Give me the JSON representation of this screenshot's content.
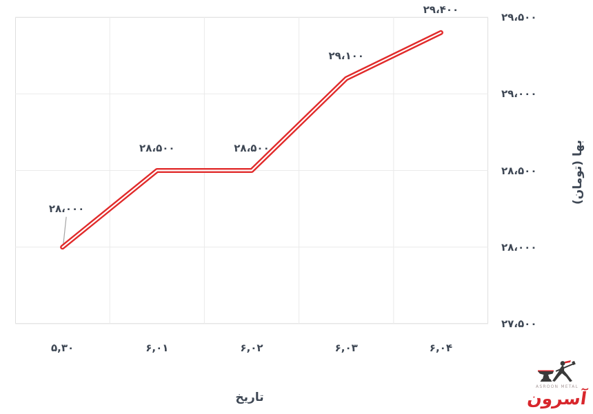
{
  "chart_data": {
    "type": "line",
    "title": "",
    "categories": [
      "۵,۳۰",
      "۶,۰۱",
      "۶,۰۲",
      "۶,۰۳",
      "۶,۰۴"
    ],
    "values": [
      28000,
      28500,
      28500,
      29100,
      29400
    ],
    "point_labels": [
      "۲۸،۰۰۰",
      "۲۸،۵۰۰",
      "۲۸،۵۰۰",
      "۲۹،۱۰۰",
      "۲۹،۴۰۰"
    ],
    "xlabel": "تاریخ",
    "ylabel": "بها (تومان)",
    "ylim": [
      27500,
      29500
    ],
    "y_tick_values": [
      29500,
      29000,
      28500,
      28000,
      27500
    ],
    "y_tick_labels": [
      "۲۹،۵۰۰",
      "۲۹،۰۰۰",
      "۲۸،۵۰۰",
      "۲۸،۰۰۰",
      "۲۷،۵۰۰"
    ],
    "grid": true,
    "legend": "none",
    "line_style": "red line with white center stroke",
    "first_label_has_leader_line": true
  },
  "colors": {
    "line_red": "#e12b2b",
    "line_core": "#ffffff",
    "text_dark": "#3e4754",
    "gridline": "#eaeaea",
    "plot_border": "#dedede",
    "leader_line": "#a6a6a6",
    "logo_red": "#d8262c",
    "logo_gray": "#a89a9a",
    "logo_dark": "#3a3a3a",
    "background": "#ffffff"
  },
  "watermark": {
    "brand_latin": "ASROON METAL",
    "brand_persian": "آسرون"
  }
}
